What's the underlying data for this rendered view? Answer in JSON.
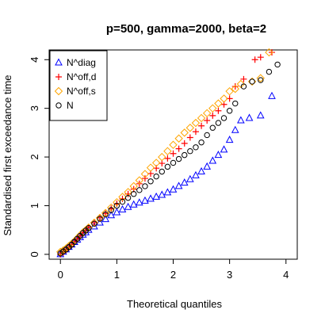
{
  "chart_data": {
    "type": "scatter",
    "title": "p=500, gamma=2000, beta=2",
    "xlabel": "Theoretical quantiles",
    "ylabel": "Standardised first exceedance time",
    "xlim": [
      -0.2,
      4.2
    ],
    "ylim": [
      -0.1,
      4.2
    ],
    "x_ticks": [
      0,
      1,
      2,
      3,
      4
    ],
    "y_ticks": [
      0,
      1,
      2,
      3,
      4
    ],
    "grid": false,
    "legend_position": "top-left",
    "series": [
      {
        "name": "N^diag",
        "marker": "triangle",
        "color": "#0000ff",
        "x": [
          0.0,
          0.05,
          0.1,
          0.15,
          0.2,
          0.25,
          0.3,
          0.35,
          0.4,
          0.45,
          0.5,
          0.6,
          0.7,
          0.8,
          0.9,
          1.0,
          1.1,
          1.2,
          1.3,
          1.4,
          1.5,
          1.6,
          1.7,
          1.8,
          1.9,
          2.0,
          2.1,
          2.2,
          2.3,
          2.4,
          2.5,
          2.6,
          2.7,
          2.8,
          2.9,
          3.0,
          3.1,
          3.2,
          3.35,
          3.55,
          3.75
        ],
        "y": [
          0.0,
          0.05,
          0.1,
          0.15,
          0.2,
          0.25,
          0.3,
          0.35,
          0.4,
          0.45,
          0.5,
          0.57,
          0.65,
          0.72,
          0.8,
          0.86,
          0.92,
          0.97,
          1.02,
          1.06,
          1.1,
          1.14,
          1.18,
          1.22,
          1.27,
          1.33,
          1.4,
          1.47,
          1.54,
          1.62,
          1.7,
          1.8,
          1.92,
          2.04,
          2.15,
          2.35,
          2.55,
          2.75,
          2.8,
          2.85,
          3.25
        ]
      },
      {
        "name": "N^off,d",
        "marker": "plus",
        "color": "#ff0000",
        "x": [
          0.0,
          0.05,
          0.1,
          0.15,
          0.2,
          0.25,
          0.3,
          0.35,
          0.4,
          0.45,
          0.5,
          0.6,
          0.7,
          0.8,
          0.9,
          1.0,
          1.1,
          1.2,
          1.3,
          1.4,
          1.5,
          1.6,
          1.7,
          1.8,
          1.9,
          2.0,
          2.1,
          2.2,
          2.3,
          2.4,
          2.5,
          2.6,
          2.7,
          2.8,
          2.9,
          3.0,
          3.1,
          3.25,
          3.45,
          3.55,
          3.75
        ],
        "y": [
          0.0,
          0.04,
          0.09,
          0.14,
          0.2,
          0.26,
          0.32,
          0.38,
          0.45,
          0.5,
          0.56,
          0.65,
          0.75,
          0.84,
          0.94,
          1.04,
          1.14,
          1.24,
          1.34,
          1.45,
          1.56,
          1.66,
          1.77,
          1.87,
          1.97,
          2.07,
          2.17,
          2.28,
          2.4,
          2.52,
          2.64,
          2.75,
          2.85,
          2.95,
          3.08,
          3.2,
          3.45,
          3.6,
          4.0,
          4.05,
          4.15
        ]
      },
      {
        "name": "N^off,s",
        "marker": "diamond",
        "color": "#ffa500",
        "x": [
          0.0,
          0.05,
          0.1,
          0.15,
          0.2,
          0.25,
          0.3,
          0.35,
          0.4,
          0.45,
          0.5,
          0.6,
          0.7,
          0.8,
          0.9,
          1.0,
          1.1,
          1.2,
          1.3,
          1.4,
          1.5,
          1.6,
          1.7,
          1.8,
          1.9,
          2.0,
          2.1,
          2.2,
          2.3,
          2.4,
          2.5,
          2.6,
          2.7,
          2.8,
          2.9,
          3.0,
          3.1,
          3.2,
          3.4,
          3.55,
          3.7
        ],
        "y": [
          0.05,
          0.08,
          0.12,
          0.17,
          0.22,
          0.27,
          0.33,
          0.39,
          0.45,
          0.5,
          0.55,
          0.65,
          0.75,
          0.85,
          0.96,
          1.07,
          1.18,
          1.28,
          1.4,
          1.52,
          1.65,
          1.78,
          1.88,
          2.0,
          2.12,
          2.25,
          2.38,
          2.5,
          2.6,
          2.7,
          2.8,
          2.9,
          3.0,
          3.1,
          3.2,
          3.35,
          3.4,
          3.5,
          3.55,
          3.62,
          4.15
        ]
      },
      {
        "name": "N",
        "marker": "circle",
        "color": "#000000",
        "x": [
          0.0,
          0.05,
          0.1,
          0.15,
          0.2,
          0.25,
          0.3,
          0.35,
          0.4,
          0.45,
          0.5,
          0.6,
          0.7,
          0.8,
          0.9,
          1.0,
          1.1,
          1.2,
          1.3,
          1.4,
          1.5,
          1.6,
          1.7,
          1.8,
          1.9,
          2.0,
          2.1,
          2.2,
          2.3,
          2.4,
          2.5,
          2.6,
          2.7,
          2.8,
          2.9,
          3.0,
          3.1,
          3.25,
          3.4,
          3.55,
          3.7,
          3.85
        ],
        "y": [
          0.02,
          0.06,
          0.1,
          0.15,
          0.2,
          0.26,
          0.32,
          0.38,
          0.44,
          0.49,
          0.54,
          0.63,
          0.73,
          0.82,
          0.91,
          1.0,
          1.08,
          1.16,
          1.24,
          1.32,
          1.4,
          1.5,
          1.6,
          1.7,
          1.8,
          1.88,
          1.96,
          2.04,
          2.12,
          2.2,
          2.3,
          2.45,
          2.6,
          2.7,
          2.8,
          2.95,
          3.1,
          3.45,
          3.55,
          3.58,
          3.75,
          3.9
        ]
      }
    ]
  }
}
